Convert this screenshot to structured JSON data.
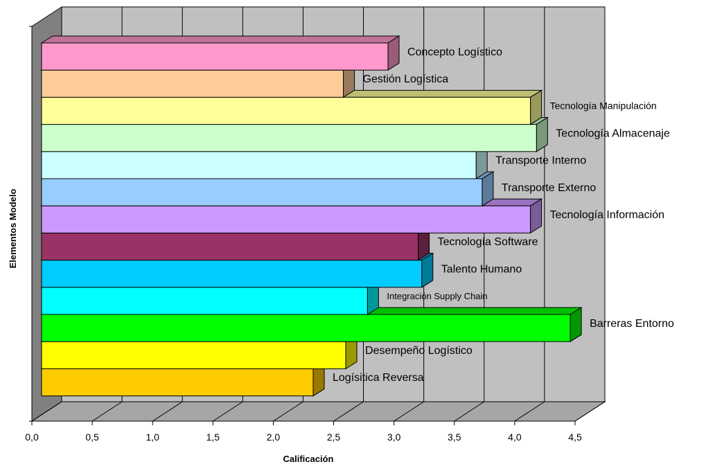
{
  "chart_data": {
    "type": "bar",
    "orientation": "horizontal",
    "three_d": true,
    "xlabel": "Calificación",
    "ylabel": "Elementos Modelo",
    "xlim": [
      0,
      4.5
    ],
    "xticks": [
      "0,0",
      "0,5",
      "1,0",
      "1,5",
      "2,0",
      "2,5",
      "3,0",
      "3,5",
      "4,0",
      "4,5"
    ],
    "grid": true,
    "legend": "none",
    "wall_color": "#c0c0c0",
    "categories": [
      "Concepto Logístico",
      "Gestión Logística",
      "Tecnología Manipulación",
      "Tecnología Almacenaje",
      "Transporte Interno",
      "Transporte Externo",
      "Tecnología Información",
      "Tecnología Software",
      "Talento Humano",
      "Integración Supply Chain",
      "Barreras Entorno",
      "Desempeño Logístico",
      "Logísitica Reversa"
    ],
    "values": [
      2.87,
      2.5,
      4.05,
      4.1,
      3.6,
      3.65,
      4.05,
      3.12,
      3.15,
      2.7,
      4.38,
      2.52,
      2.25
    ],
    "colors": [
      "#ff99cc",
      "#ffcc99",
      "#ffff99",
      "#ccffcc",
      "#ccffff",
      "#99ccff",
      "#cc99ff",
      "#993366",
      "#00ccff",
      "#00ffff",
      "#00ff00",
      "#ffff00",
      "#ffcc00"
    ]
  }
}
